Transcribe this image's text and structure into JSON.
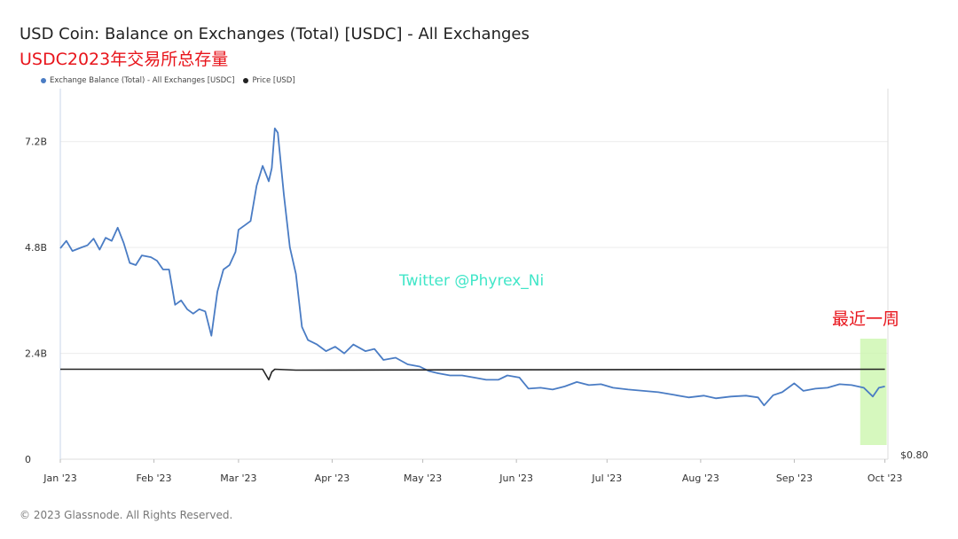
{
  "title": "USD Coin: Balance on Exchanges (Total) [USDC] - All Exchanges",
  "subtitle": "USDC2023年交易所总存量",
  "watermark": "Twitter @Phyrex_Ni",
  "note": "最近一周",
  "footer": "© 2023 Glassnode. All Rights Reserved.",
  "colors": {
    "balance": "#4a7cc4",
    "price": "#222222",
    "highlight": "#c8f5a8",
    "grid": "#ececec"
  },
  "chart_data": {
    "type": "line",
    "legend": [
      "Exchange Balance (Total) - All Exchanges [USDC]",
      "Price [USD]"
    ],
    "x_ticks": [
      "Jan '23",
      "Feb '23",
      "Mar '23",
      "Apr '23",
      "May '23",
      "Jun '23",
      "Jul '23",
      "Aug '23",
      "Sep '23",
      "Oct '23"
    ],
    "y_ticks": [
      "0",
      "2.4B",
      "4.8B",
      "7.2B"
    ],
    "y_tick_values": [
      0,
      2.4,
      4.8,
      7.2
    ],
    "ylim": [
      0,
      8.4
    ],
    "right_axis_label": "$0.80",
    "x_range": [
      "2023-01-01",
      "2023-10-02"
    ],
    "highlight_range": [
      "2023-09-24",
      "2023-10-01"
    ],
    "series": [
      {
        "name": "Exchange Balance (Total) - All Exchanges [USDC]",
        "unit": "B",
        "points": [
          [
            "2023-01-01",
            4.78
          ],
          [
            "2023-01-03",
            4.95
          ],
          [
            "2023-01-05",
            4.72
          ],
          [
            "2023-01-08",
            4.8
          ],
          [
            "2023-01-10",
            4.85
          ],
          [
            "2023-01-12",
            5.0
          ],
          [
            "2023-01-14",
            4.75
          ],
          [
            "2023-01-16",
            5.02
          ],
          [
            "2023-01-18",
            4.95
          ],
          [
            "2023-01-20",
            5.25
          ],
          [
            "2023-01-22",
            4.9
          ],
          [
            "2023-01-24",
            4.45
          ],
          [
            "2023-01-26",
            4.4
          ],
          [
            "2023-01-28",
            4.62
          ],
          [
            "2023-01-31",
            4.58
          ],
          [
            "2023-02-02",
            4.5
          ],
          [
            "2023-02-04",
            4.3
          ],
          [
            "2023-02-06",
            4.3
          ],
          [
            "2023-02-08",
            3.5
          ],
          [
            "2023-02-10",
            3.6
          ],
          [
            "2023-02-12",
            3.4
          ],
          [
            "2023-02-14",
            3.3
          ],
          [
            "2023-02-16",
            3.4
          ],
          [
            "2023-02-18",
            3.35
          ],
          [
            "2023-02-20",
            2.8
          ],
          [
            "2023-02-22",
            3.8
          ],
          [
            "2023-02-24",
            4.3
          ],
          [
            "2023-02-26",
            4.4
          ],
          [
            "2023-02-28",
            4.7
          ],
          [
            "2023-03-01",
            5.2
          ],
          [
            "2023-03-03",
            5.3
          ],
          [
            "2023-03-05",
            5.4
          ],
          [
            "2023-03-07",
            6.2
          ],
          [
            "2023-03-09",
            6.65
          ],
          [
            "2023-03-11",
            6.3
          ],
          [
            "2023-03-12",
            6.6
          ],
          [
            "2023-03-13",
            7.5
          ],
          [
            "2023-03-14",
            7.4
          ],
          [
            "2023-03-16",
            6.0
          ],
          [
            "2023-03-18",
            4.8
          ],
          [
            "2023-03-20",
            4.2
          ],
          [
            "2023-03-22",
            3.0
          ],
          [
            "2023-03-24",
            2.7
          ],
          [
            "2023-03-27",
            2.6
          ],
          [
            "2023-03-30",
            2.45
          ],
          [
            "2023-04-02",
            2.55
          ],
          [
            "2023-04-05",
            2.4
          ],
          [
            "2023-04-08",
            2.6
          ],
          [
            "2023-04-12",
            2.45
          ],
          [
            "2023-04-15",
            2.5
          ],
          [
            "2023-04-18",
            2.25
          ],
          [
            "2023-04-22",
            2.3
          ],
          [
            "2023-04-26",
            2.15
          ],
          [
            "2023-04-30",
            2.1
          ],
          [
            "2023-05-03",
            2.0
          ],
          [
            "2023-05-06",
            1.95
          ],
          [
            "2023-05-10",
            1.9
          ],
          [
            "2023-05-14",
            1.9
          ],
          [
            "2023-05-18",
            1.85
          ],
          [
            "2023-05-22",
            1.8
          ],
          [
            "2023-05-26",
            1.8
          ],
          [
            "2023-05-29",
            1.9
          ],
          [
            "2023-06-02",
            1.85
          ],
          [
            "2023-06-05",
            1.6
          ],
          [
            "2023-06-09",
            1.62
          ],
          [
            "2023-06-13",
            1.58
          ],
          [
            "2023-06-17",
            1.65
          ],
          [
            "2023-06-21",
            1.75
          ],
          [
            "2023-06-25",
            1.68
          ],
          [
            "2023-06-29",
            1.7
          ],
          [
            "2023-07-03",
            1.62
          ],
          [
            "2023-07-08",
            1.58
          ],
          [
            "2023-07-13",
            1.55
          ],
          [
            "2023-07-18",
            1.52
          ],
          [
            "2023-07-23",
            1.46
          ],
          [
            "2023-07-28",
            1.4
          ],
          [
            "2023-08-02",
            1.44
          ],
          [
            "2023-08-06",
            1.38
          ],
          [
            "2023-08-11",
            1.42
          ],
          [
            "2023-08-16",
            1.44
          ],
          [
            "2023-08-20",
            1.4
          ],
          [
            "2023-08-22",
            1.22
          ],
          [
            "2023-08-25",
            1.45
          ],
          [
            "2023-08-28",
            1.52
          ],
          [
            "2023-09-01",
            1.72
          ],
          [
            "2023-09-04",
            1.55
          ],
          [
            "2023-09-08",
            1.6
          ],
          [
            "2023-09-12",
            1.62
          ],
          [
            "2023-09-16",
            1.7
          ],
          [
            "2023-09-20",
            1.68
          ],
          [
            "2023-09-24",
            1.62
          ],
          [
            "2023-09-27",
            1.42
          ],
          [
            "2023-09-29",
            1.62
          ],
          [
            "2023-10-01",
            1.65
          ]
        ]
      },
      {
        "name": "Price [USD]",
        "unit": "USD",
        "points": [
          [
            "2023-01-01",
            2.04
          ],
          [
            "2023-03-09",
            2.04
          ],
          [
            "2023-03-11",
            1.8
          ],
          [
            "2023-03-12",
            1.98
          ],
          [
            "2023-03-13",
            2.04
          ],
          [
            "2023-03-20",
            2.02
          ],
          [
            "2023-10-01",
            2.04
          ]
        ]
      }
    ]
  }
}
